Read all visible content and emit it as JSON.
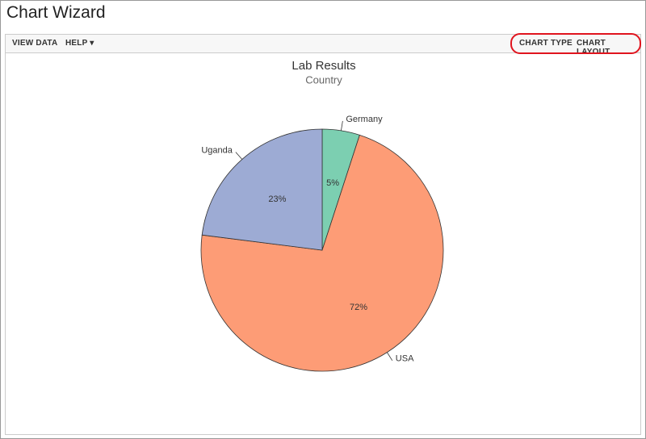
{
  "header": {
    "title": "Chart Wizard"
  },
  "toolbar": {
    "left": [
      "VIEW DATA",
      "HELP"
    ],
    "right": [
      "CHART TYPE",
      "CHART LAYOUT"
    ]
  },
  "chart_data": {
    "type": "pie",
    "title": "Lab Results",
    "subtitle": "Country",
    "categories": [
      "Germany",
      "USA",
      "Uganda"
    ],
    "values": [
      5,
      72,
      23
    ],
    "value_labels": [
      "5%",
      "72%",
      "23%"
    ],
    "colors": [
      "#7ccfb1",
      "#fd9c76",
      "#9dabd4"
    ]
  }
}
